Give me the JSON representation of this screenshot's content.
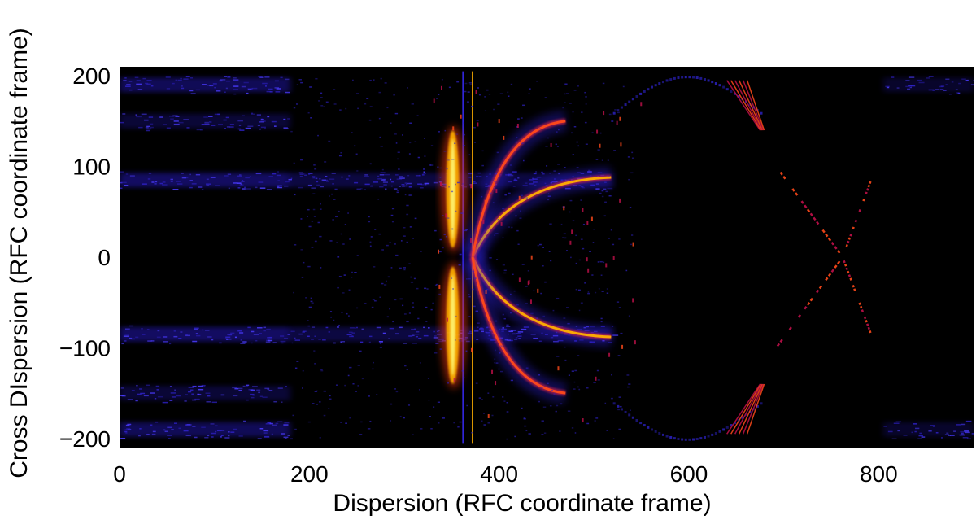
{
  "chart_data": {
    "type": "heatmap",
    "title": "",
    "xlabel": "Dispersion (RFC coordinate frame)",
    "ylabel": "Cross DIspersion (RFC coordinate frame)",
    "xlim": [
      0,
      900
    ],
    "ylim": [
      -210,
      210
    ],
    "xticks": [
      0,
      200,
      400,
      600,
      800
    ],
    "yticks": [
      -200,
      -100,
      0,
      100,
      200
    ],
    "xtick_labels": [
      "0",
      "200",
      "400",
      "600",
      "800"
    ],
    "ytick_labels": [
      "−200",
      "−100",
      "0",
      "100",
      "200"
    ],
    "colormap": [
      "#000000",
      "#1a0a8c",
      "#3a2cff",
      "#c0104a",
      "#ff4a1a",
      "#ffb000",
      "#ffff80"
    ],
    "background_color": "#000000",
    "features": [
      {
        "kind": "blue-band",
        "x": [
          0,
          180
        ],
        "y": 85,
        "intensity": 0.45
      },
      {
        "kind": "blue-band",
        "x": [
          0,
          180
        ],
        "y": -85,
        "intensity": 0.45
      },
      {
        "kind": "blue-band",
        "x": [
          0,
          180
        ],
        "y": 190,
        "intensity": 0.4
      },
      {
        "kind": "blue-band",
        "x": [
          0,
          180
        ],
        "y": -190,
        "intensity": 0.4
      },
      {
        "kind": "blue-band",
        "x": [
          0,
          180
        ],
        "y": 150,
        "intensity": 0.25
      },
      {
        "kind": "blue-band",
        "x": [
          0,
          180
        ],
        "y": -150,
        "intensity": 0.25
      },
      {
        "kind": "blue-band",
        "x": [
          805,
          900
        ],
        "y": 190,
        "intensity": 0.2
      },
      {
        "kind": "blue-band",
        "x": [
          805,
          900
        ],
        "y": -190,
        "intensity": 0.2
      },
      {
        "kind": "blue-band",
        "x": [
          180,
          520
        ],
        "y": 85,
        "intensity": 0.3
      },
      {
        "kind": "blue-band",
        "x": [
          180,
          520
        ],
        "y": -85,
        "intensity": 0.3
      },
      {
        "kind": "vertical-line",
        "x": 372,
        "y": [
          -205,
          205
        ],
        "intensity": 0.8
      },
      {
        "kind": "vertical-line",
        "x": 362,
        "y": [
          -205,
          205
        ],
        "intensity": 0.4
      },
      {
        "kind": "bright-lobe",
        "x_center": 352,
        "y_range": [
          5,
          145
        ],
        "intensity": 0.95
      },
      {
        "kind": "bright-lobe",
        "x_center": 352,
        "y_range": [
          -5,
          -145
        ],
        "intensity": 0.95
      },
      {
        "kind": "arc",
        "x_origin": 372,
        "x_end": 518,
        "y_end": 88,
        "intensity": 0.85
      },
      {
        "kind": "arc",
        "x_origin": 372,
        "x_end": 518,
        "y_end": -88,
        "intensity": 0.85
      },
      {
        "kind": "arc",
        "x_origin": 372,
        "x_end": 470,
        "y_end": 150,
        "intensity": 0.7
      },
      {
        "kind": "arc",
        "x_origin": 372,
        "x_end": 470,
        "y_end": -150,
        "intensity": 0.7
      },
      {
        "kind": "cross-line",
        "x_center": 762,
        "y_center": 0,
        "x_span": [
          692,
          792
        ],
        "intensity": 0.6
      },
      {
        "kind": "faint-arc",
        "x_range": [
          520,
          675
        ],
        "y_peak": 200,
        "intensity": 0.35
      },
      {
        "kind": "faint-arc",
        "x_range": [
          520,
          675
        ],
        "y_peak": -200,
        "intensity": 0.35
      },
      {
        "kind": "streak",
        "x_range": [
          640,
          675
        ],
        "y_range": [
          140,
          195
        ],
        "intensity": 0.6
      },
      {
        "kind": "streak",
        "x_range": [
          640,
          675
        ],
        "y_range": [
          -140,
          -195
        ],
        "intensity": 0.6
      }
    ],
    "grid": false,
    "legend": "none"
  }
}
